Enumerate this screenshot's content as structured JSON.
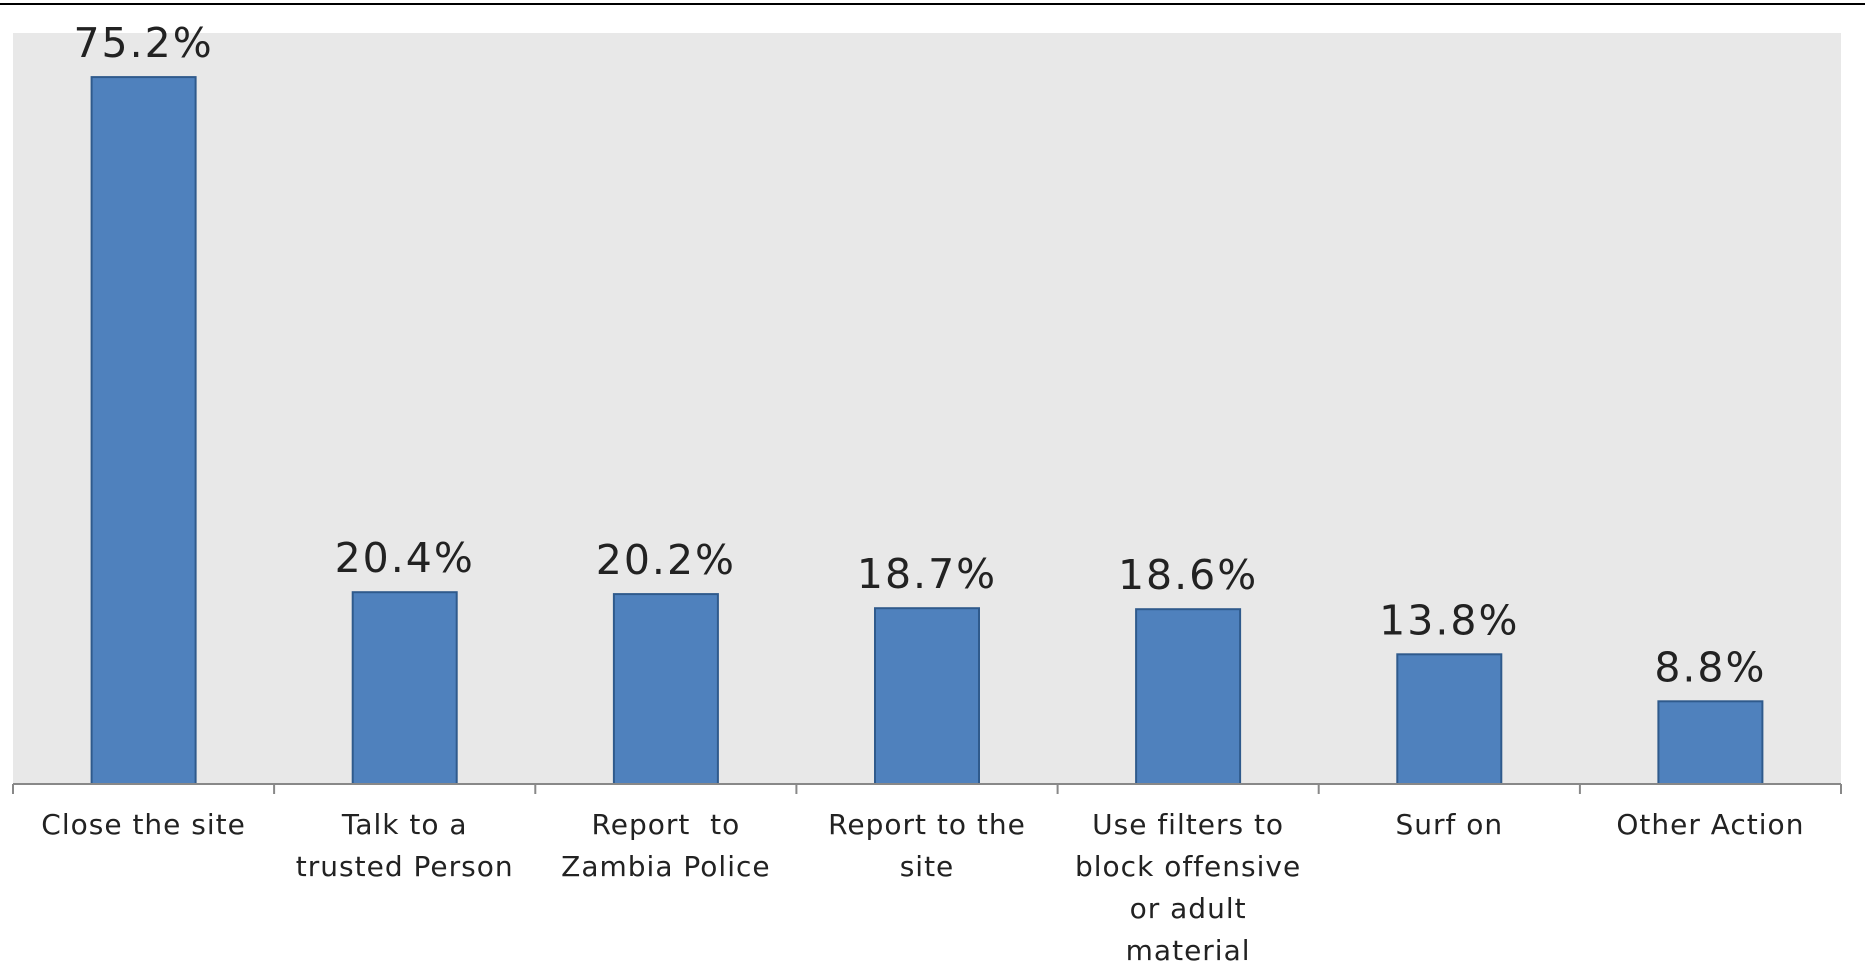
{
  "chart_data": {
    "type": "bar",
    "categories": [
      [
        "Close the site"
      ],
      [
        "Talk to a",
        "trusted Person"
      ],
      [
        "Report  to",
        "Zambia Police"
      ],
      [
        "Report to the",
        "site"
      ],
      [
        "Use filters to",
        "block offensive",
        "or adult",
        "material"
      ],
      [
        "Surf on"
      ],
      [
        "Other Action"
      ]
    ],
    "values": [
      75.2,
      20.4,
      20.2,
      18.7,
      18.6,
      13.8,
      8.8
    ],
    "value_labels": [
      "75.2%",
      "20.4%",
      "20.2%",
      "18.7%",
      "18.6%",
      "13.8%",
      "8.8%"
    ],
    "title": "",
    "xlabel": "",
    "ylabel": "",
    "ylim": [
      0,
      80
    ],
    "grid": false,
    "legend": "none",
    "colors": {
      "bar": "#4f81bd",
      "bar_edge": "#2f5a8c",
      "plot_bg": "#e8e8e8",
      "axis": "#888888",
      "text": "#222222"
    }
  }
}
